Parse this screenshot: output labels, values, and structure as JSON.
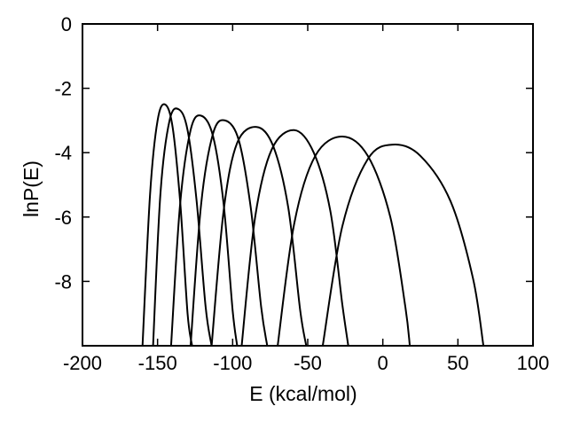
{
  "chart_data": {
    "type": "line",
    "title": "",
    "xlabel": "E (kcal/mol)",
    "ylabel": "lnP(E)",
    "xlim": [
      -200,
      100
    ],
    "ylim": [
      -10,
      0
    ],
    "xticks": [
      -200,
      -150,
      -100,
      -50,
      0,
      50,
      100
    ],
    "yticks": [
      0,
      -2,
      -4,
      -6,
      -8
    ],
    "xtick_labels": [
      "-200",
      "-150",
      "-100",
      "-50",
      "0",
      "50",
      "100"
    ],
    "ytick_labels": [
      "0",
      "-2",
      "-4",
      "-6",
      "-8"
    ],
    "grid": false,
    "legend": "none",
    "line_color": "#000000",
    "series": [
      {
        "x": [
          -160,
          -155,
          -150,
          -145,
          -140,
          -135,
          -130,
          -127
        ],
        "y": [
          -10,
          -5.3,
          -3.0,
          -2.5,
          -3.2,
          -5.5,
          -9.0,
          -10
        ]
      },
      {
        "x": [
          -153,
          -148,
          -142,
          -136,
          -130,
          -124,
          -118,
          -114
        ],
        "y": [
          -10,
          -5.2,
          -3.0,
          -2.65,
          -3.3,
          -5.5,
          -8.8,
          -10
        ]
      },
      {
        "x": [
          -141,
          -135,
          -128,
          -121,
          -113,
          -106,
          -100,
          -97
        ],
        "y": [
          -10,
          -5.6,
          -3.3,
          -2.85,
          -3.5,
          -5.6,
          -8.9,
          -10
        ]
      },
      {
        "x": [
          -128,
          -121,
          -113,
          -105,
          -96,
          -88,
          -81,
          -77
        ],
        "y": [
          -10,
          -5.6,
          -3.4,
          -3.0,
          -3.6,
          -5.7,
          -8.8,
          -10
        ]
      },
      {
        "x": [
          -114,
          -106,
          -97,
          -84,
          -73,
          -63,
          -55,
          -51
        ],
        "y": [
          -10,
          -5.8,
          -3.7,
          -3.2,
          -3.8,
          -5.7,
          -8.9,
          -10
        ]
      },
      {
        "x": [
          -94,
          -85,
          -74,
          -59,
          -46,
          -35,
          -27,
          -23
        ],
        "y": [
          -10,
          -6.0,
          -3.9,
          -3.3,
          -4.0,
          -5.8,
          -8.7,
          -10
        ]
      },
      {
        "x": [
          -70,
          -59,
          -45,
          -27,
          -10,
          5,
          15,
          18
        ],
        "y": [
          -10,
          -6.2,
          -4.1,
          -3.5,
          -4.1,
          -6.0,
          -8.8,
          -10
        ]
      },
      {
        "x": [
          -40,
          -27,
          -10,
          7,
          25,
          45,
          60,
          67
        ],
        "y": [
          -10,
          -6.3,
          -4.2,
          -3.75,
          -4.1,
          -5.5,
          -7.9,
          -10
        ]
      }
    ]
  }
}
